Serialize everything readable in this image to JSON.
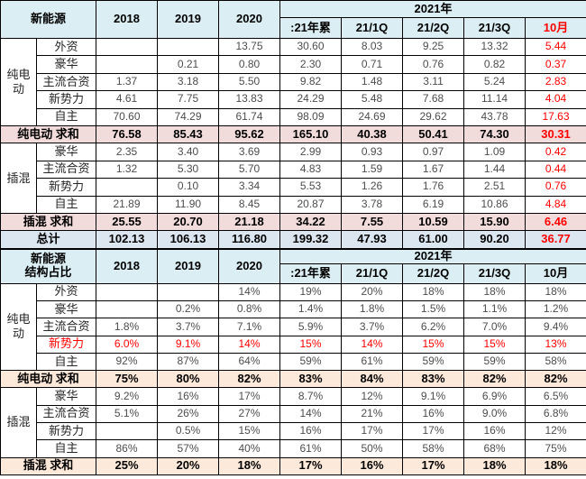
{
  "colors": {
    "header_bg": "#daeef3",
    "sum_pink_bg": "#f2dcdb",
    "total_blue_bg": "#dce6f1",
    "sum_peach_bg": "#fde9d9",
    "red_text": "#ff0000",
    "normal_text": "#4d4d4d",
    "border": "#000000"
  },
  "chart_data": [
    {
      "type": "table",
      "title_lines": [
        "新能源"
      ],
      "col_headers": [
        "2018",
        "2019",
        "2020"
      ],
      "year_group_header": "2021年",
      "sub_headers": [
        ":21年累",
        "21/1Q",
        "21/2Q",
        "21/3Q",
        "10月"
      ],
      "oct_header_red": true,
      "last_col_red": true,
      "sum_class": "sum-pink",
      "rows": [
        {
          "kind": "data",
          "group_lines": [
            "纯电",
            "动"
          ],
          "group_span": 5,
          "label": "外资",
          "values": [
            "",
            "",
            "13.75",
            "30.60",
            "8.03",
            "9.25",
            "13.32",
            "5.44"
          ]
        },
        {
          "kind": "data",
          "label": "豪华",
          "values": [
            "",
            "0.21",
            "0.80",
            "2.30",
            "0.71",
            "0.76",
            "0.82",
            "0.37"
          ]
        },
        {
          "kind": "data",
          "label": "主流合资",
          "values": [
            "1.37",
            "3.18",
            "5.50",
            "9.82",
            "1.48",
            "3.11",
            "5.24",
            "2.83"
          ]
        },
        {
          "kind": "data",
          "label": "新势力",
          "values": [
            "4.61",
            "7.75",
            "13.83",
            "24.29",
            "5.48",
            "7.68",
            "11.14",
            "4.04"
          ]
        },
        {
          "kind": "data",
          "label": "自主",
          "values": [
            "70.60",
            "74.29",
            "61.74",
            "98.09",
            "24.69",
            "29.62",
            "43.78",
            "17.63"
          ]
        },
        {
          "kind": "sum",
          "label": "纯电动 求和",
          "values": [
            "76.58",
            "85.43",
            "95.62",
            "165.10",
            "40.38",
            "50.41",
            "74.30",
            "30.31"
          ]
        },
        {
          "kind": "data",
          "group_lines": [
            "插混"
          ],
          "group_span": 4,
          "label": "豪华",
          "values": [
            "2.35",
            "3.40",
            "3.69",
            "2.99",
            "0.93",
            "0.97",
            "1.09",
            "0.42"
          ]
        },
        {
          "kind": "data",
          "label": "主流合资",
          "values": [
            "1.32",
            "5.30",
            "5.70",
            "4.83",
            "1.59",
            "1.67",
            "1.44",
            "0.44"
          ]
        },
        {
          "kind": "data",
          "label": "新势力",
          "values": [
            "",
            "0.10",
            "3.34",
            "5.53",
            "1.26",
            "1.76",
            "2.51",
            "0.76"
          ]
        },
        {
          "kind": "data",
          "label": "自主",
          "values": [
            "21.89",
            "11.90",
            "8.45",
            "20.87",
            "3.78",
            "6.19",
            "10.86",
            "4.84"
          ]
        },
        {
          "kind": "sum",
          "label": "插混 求和",
          "values": [
            "25.55",
            "20.70",
            "21.18",
            "34.22",
            "7.55",
            "10.59",
            "15.90",
            "6.46"
          ]
        },
        {
          "kind": "total",
          "label": "总计",
          "values": [
            "102.13",
            "106.13",
            "116.80",
            "199.32",
            "47.93",
            "61.00",
            "90.20",
            "36.77"
          ]
        }
      ]
    },
    {
      "type": "table",
      "title_lines": [
        "新能源",
        "结构占比"
      ],
      "col_headers": [
        "2018",
        "2019",
        "2020"
      ],
      "year_group_header": "2021年",
      "sub_headers": [
        ":21年累",
        "21/1Q",
        "21/2Q",
        "21/3Q",
        "10月"
      ],
      "oct_header_red": false,
      "last_col_red": false,
      "sum_class": "sum-peach",
      "rows": [
        {
          "kind": "data",
          "group_lines": [
            "纯电",
            "动"
          ],
          "group_span": 5,
          "label": "外资",
          "values": [
            "",
            "",
            "14%",
            "19%",
            "20%",
            "18%",
            "18%",
            "18%"
          ]
        },
        {
          "kind": "data",
          "label": "豪华",
          "values": [
            "",
            "0.2%",
            "0.8%",
            "1.4%",
            "1.8%",
            "1.5%",
            "1.1%",
            "1.2%"
          ]
        },
        {
          "kind": "data",
          "label": "主流合资",
          "values": [
            "1.8%",
            "3.7%",
            "7.1%",
            "5.9%",
            "3.7%",
            "6.2%",
            "7.0%",
            "9.4%"
          ]
        },
        {
          "kind": "data",
          "label": "新势力",
          "red_row": true,
          "values": [
            "6.0%",
            "9.1%",
            "14%",
            "15%",
            "14%",
            "15%",
            "15%",
            "13%"
          ]
        },
        {
          "kind": "data",
          "label": "自主",
          "values": [
            "92%",
            "87%",
            "64%",
            "59%",
            "61%",
            "59%",
            "59%",
            "58%"
          ]
        },
        {
          "kind": "sum",
          "label": "纯电动 求和",
          "values": [
            "75%",
            "80%",
            "82%",
            "83%",
            "84%",
            "83%",
            "82%",
            "82%"
          ]
        },
        {
          "kind": "data",
          "group_lines": [
            "插混"
          ],
          "group_span": 4,
          "label": "豪华",
          "values": [
            "9.2%",
            "16%",
            "17%",
            "8.7%",
            "12%",
            "9.1%",
            "6.9%",
            "6.5%"
          ]
        },
        {
          "kind": "data",
          "label": "主流合资",
          "values": [
            "5.1%",
            "26%",
            "27%",
            "14%",
            "21%",
            "16%",
            "9.0%",
            "6.8%"
          ]
        },
        {
          "kind": "data",
          "label": "新势力",
          "values": [
            "",
            "0.5%",
            "15%",
            "16%",
            "17%",
            "17%",
            "16%",
            "12%"
          ]
        },
        {
          "kind": "data",
          "label": "自主",
          "values": [
            "86%",
            "57%",
            "40%",
            "61%",
            "50%",
            "58%",
            "68%",
            "75%"
          ]
        },
        {
          "kind": "sum",
          "label": "插混 求和",
          "values": [
            "25%",
            "20%",
            "18%",
            "17%",
            "16%",
            "17%",
            "18%",
            "18%"
          ]
        }
      ]
    }
  ]
}
